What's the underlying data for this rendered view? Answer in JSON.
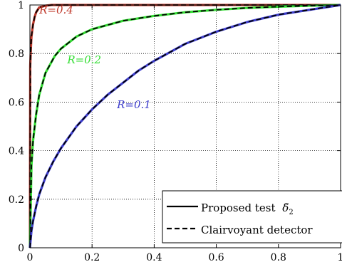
{
  "chart_data": {
    "type": "line",
    "xlim": [
      0,
      1
    ],
    "ylim": [
      0,
      1
    ],
    "grid": true,
    "x_ticks": [
      0,
      0.2,
      0.4,
      0.6,
      0.8,
      1
    ],
    "y_ticks": [
      0,
      0.2,
      0.4,
      0.6,
      0.8,
      1
    ],
    "x_tick_labels": [
      "0",
      "0.2",
      "0.4",
      "0.6",
      "0.8",
      "1"
    ],
    "y_tick_labels": [
      "0",
      "0.2",
      "0.4",
      "0.6",
      "0.8",
      "1"
    ],
    "legend_position": "bottom-right",
    "legend": [
      {
        "label": "Proposed test",
        "symbol": "δ̃",
        "subscript": "2",
        "line_style": "solid",
        "color": "#000000"
      },
      {
        "label": "Clairvoyant detector",
        "line_style": "dashed",
        "color": "#000000"
      }
    ],
    "series": [
      {
        "label": "R=0.4",
        "color": "#c0392b",
        "x": [
          0,
          0.001,
          0.003,
          0.005,
          0.01,
          0.015,
          0.02,
          0.03,
          0.05,
          0.07,
          0.1,
          0.2,
          0.4,
          0.6,
          0.8,
          1
        ],
        "y": [
          0,
          0.75,
          0.82,
          0.87,
          0.92,
          0.95,
          0.97,
          0.99,
          0.997,
          1,
          1,
          1,
          1,
          1,
          1,
          1
        ]
      },
      {
        "label": "R=0.2",
        "color": "#33dd33",
        "x": [
          0,
          0.005,
          0.01,
          0.02,
          0.03,
          0.05,
          0.08,
          0.1,
          0.15,
          0.2,
          0.3,
          0.4,
          0.5,
          0.6,
          0.7,
          0.8,
          0.9,
          1
        ],
        "y": [
          0,
          0.34,
          0.44,
          0.55,
          0.63,
          0.72,
          0.79,
          0.82,
          0.87,
          0.9,
          0.935,
          0.955,
          0.97,
          0.98,
          0.988,
          0.993,
          0.997,
          1
        ]
      },
      {
        "label": "R=0.1",
        "color": "#3d3dcc",
        "x": [
          0,
          0.005,
          0.01,
          0.02,
          0.03,
          0.05,
          0.075,
          0.1,
          0.15,
          0.2,
          0.25,
          0.3,
          0.35,
          0.4,
          0.5,
          0.6,
          0.7,
          0.8,
          0.9,
          1
        ],
        "y": [
          0,
          0.07,
          0.11,
          0.17,
          0.22,
          0.29,
          0.355,
          0.41,
          0.5,
          0.57,
          0.63,
          0.68,
          0.73,
          0.77,
          0.84,
          0.89,
          0.93,
          0.96,
          0.98,
          1
        ]
      }
    ],
    "annotations": [
      {
        "text": "R=0.4",
        "x": 0.03,
        "y": 0.965,
        "color": "#c0392b"
      },
      {
        "text": "R=0.2",
        "x": 0.12,
        "y": 0.76,
        "color": "#33dd33"
      },
      {
        "text": "R=0.1",
        "x": 0.28,
        "y": 0.575,
        "color": "#3d3dcc"
      }
    ]
  }
}
